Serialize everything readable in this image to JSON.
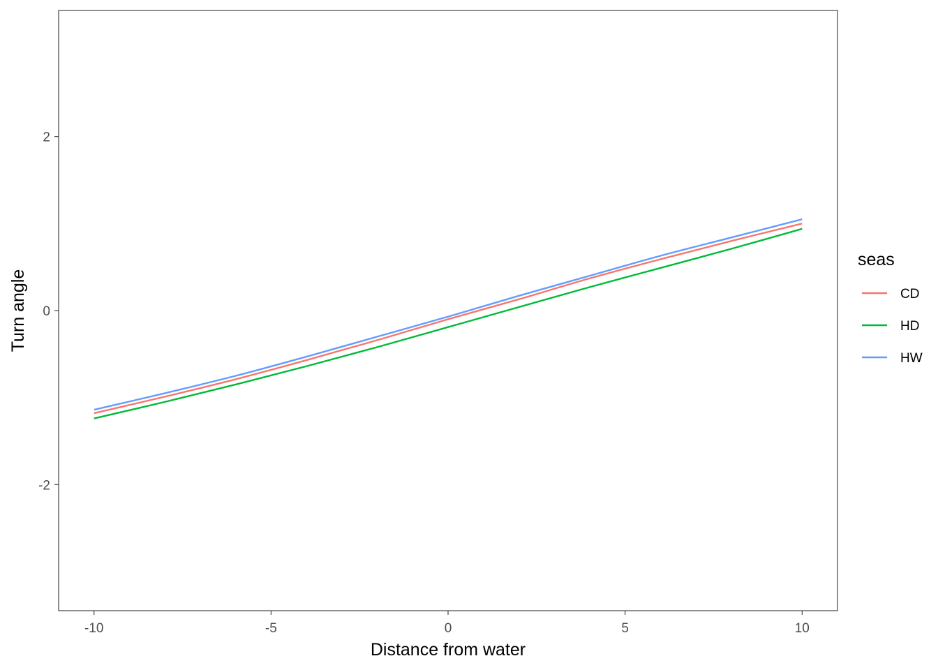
{
  "chart_data": {
    "type": "line",
    "title": "",
    "xlabel": "Distance from water",
    "ylabel": "Turn angle",
    "xlim": [
      -11,
      11
    ],
    "ylim": [
      -3.45,
      3.45
    ],
    "x_ticks": [
      -10,
      -5,
      0,
      5,
      10
    ],
    "x_tick_labels": [
      "-10",
      "-5",
      "0",
      "5",
      "10"
    ],
    "y_ticks": [
      -2,
      0,
      2
    ],
    "y_tick_labels": [
      "-2",
      "0",
      "2"
    ],
    "grid": false,
    "legend": {
      "title": "seas",
      "position": "right"
    },
    "x": [
      -10,
      -8,
      -6,
      -4,
      -2,
      0,
      2,
      4,
      6,
      8,
      10
    ],
    "series": [
      {
        "name": "CD",
        "color": "#F8766D",
        "values": [
          -1.18,
          -0.99,
          -0.79,
          -0.57,
          -0.34,
          -0.1,
          0.13,
          0.37,
          0.59,
          0.8,
          1.0
        ]
      },
      {
        "name": "HD",
        "color": "#00BA38",
        "values": [
          -1.24,
          -1.05,
          -0.85,
          -0.64,
          -0.42,
          -0.19,
          0.04,
          0.27,
          0.49,
          0.71,
          0.94
        ]
      },
      {
        "name": "HW",
        "color": "#619CFF",
        "values": [
          -1.14,
          -0.95,
          -0.75,
          -0.53,
          -0.3,
          -0.07,
          0.17,
          0.4,
          0.63,
          0.84,
          1.05
        ]
      }
    ]
  }
}
